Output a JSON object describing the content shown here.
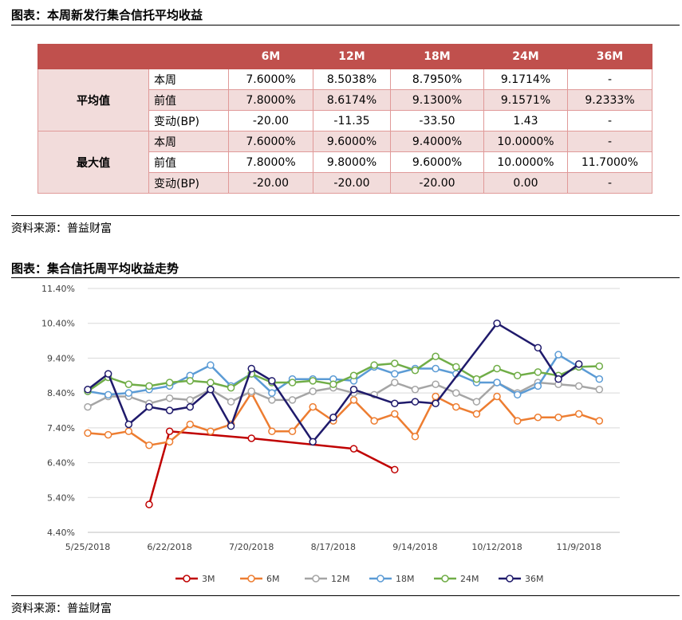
{
  "table_section": {
    "title": "图表：本周新发行集合信托平均收益",
    "source": "资料来源：普益财富",
    "headers": [
      "",
      "",
      "6M",
      "12M",
      "18M",
      "24M",
      "36M"
    ],
    "groups": [
      {
        "name": "平均值",
        "rows": [
          {
            "label": "本周",
            "values": [
              "7.6000%",
              "8.5038%",
              "8.7950%",
              "9.1714%",
              "-"
            ]
          },
          {
            "label": "前值",
            "values": [
              "7.8000%",
              "8.6174%",
              "9.1300%",
              "9.1571%",
              "9.2333%"
            ]
          },
          {
            "label": "变动(BP)",
            "values": [
              "-20.00",
              "-11.35",
              "-33.50",
              "1.43",
              "-"
            ]
          }
        ]
      },
      {
        "name": "最大值",
        "rows": [
          {
            "label": "本周",
            "values": [
              "7.6000%",
              "9.6000%",
              "9.4000%",
              "10.0000%",
              "-"
            ]
          },
          {
            "label": "前值",
            "values": [
              "7.8000%",
              "9.8000%",
              "9.6000%",
              "10.0000%",
              "11.7000%"
            ]
          },
          {
            "label": "变动(BP)",
            "values": [
              "-20.00",
              "-20.00",
              "-20.00",
              "0.00",
              "-"
            ]
          }
        ]
      }
    ]
  },
  "chart_section": {
    "title": "图表：集合信托周平均收益走势",
    "source": "资料来源：普益财富"
  },
  "chart_data": {
    "type": "line",
    "title": "",
    "xlabel": "",
    "ylabel": "",
    "x_tick_labels": [
      "5/25/2018",
      "6/22/2018",
      "7/20/2018",
      "8/17/2018",
      "9/14/2018",
      "10/12/2018",
      "11/9/2018"
    ],
    "y_tick_labels": [
      "4.40%",
      "5.40%",
      "6.40%",
      "7.40%",
      "8.40%",
      "9.40%",
      "10.40%",
      "11.40%"
    ],
    "ylim": [
      4.4,
      11.4
    ],
    "xlim": [
      "2018-05-25",
      "2018-11-23"
    ],
    "grid": "horizontal",
    "legend": "bottom",
    "series": [
      {
        "name": "3M",
        "color": "#c00000",
        "dates": [
          "2018-06-15",
          "2018-06-22",
          "2018-07-20",
          "2018-08-24",
          "2018-09-07"
        ],
        "values": [
          5.2,
          7.3,
          7.1,
          6.8,
          6.2
        ]
      },
      {
        "name": "6M",
        "color": "#ed7d31",
        "dates": [
          "2018-05-25",
          "2018-06-01",
          "2018-06-08",
          "2018-06-15",
          "2018-06-22",
          "2018-06-29",
          "2018-07-06",
          "2018-07-13",
          "2018-07-20",
          "2018-07-27",
          "2018-08-03",
          "2018-08-10",
          "2018-08-17",
          "2018-08-24",
          "2018-08-31",
          "2018-09-07",
          "2018-09-14",
          "2018-09-21",
          "2018-09-28",
          "2018-10-05",
          "2018-10-12",
          "2018-10-19",
          "2018-10-26",
          "2018-11-02",
          "2018-11-09",
          "2018-11-16"
        ],
        "values": [
          7.25,
          7.2,
          7.3,
          6.9,
          7.0,
          7.5,
          7.3,
          7.5,
          8.4,
          7.3,
          7.3,
          8.0,
          7.6,
          8.2,
          7.6,
          7.8,
          7.15,
          8.3,
          8.0,
          7.8,
          8.3,
          7.6,
          7.7,
          7.7,
          7.8,
          7.6
        ]
      },
      {
        "name": "12M",
        "color": "#a5a5a5",
        "dates": [
          "2018-05-25",
          "2018-06-01",
          "2018-06-08",
          "2018-06-15",
          "2018-06-22",
          "2018-06-29",
          "2018-07-06",
          "2018-07-13",
          "2018-07-20",
          "2018-07-27",
          "2018-08-03",
          "2018-08-10",
          "2018-08-17",
          "2018-08-24",
          "2018-08-31",
          "2018-09-07",
          "2018-09-14",
          "2018-09-21",
          "2018-09-28",
          "2018-10-05",
          "2018-10-12",
          "2018-10-19",
          "2018-10-26",
          "2018-11-02",
          "2018-11-09",
          "2018-11-16"
        ],
        "values": [
          8.0,
          8.3,
          8.3,
          8.1,
          8.25,
          8.2,
          8.5,
          8.15,
          8.45,
          8.2,
          8.2,
          8.45,
          8.55,
          8.4,
          8.35,
          8.7,
          8.5,
          8.65,
          8.4,
          8.15,
          8.7,
          8.4,
          8.7,
          8.65,
          8.6,
          8.5
        ]
      },
      {
        "name": "18M",
        "color": "#5b9bd5",
        "dates": [
          "2018-05-25",
          "2018-06-01",
          "2018-06-08",
          "2018-06-15",
          "2018-06-22",
          "2018-06-29",
          "2018-07-06",
          "2018-07-13",
          "2018-07-20",
          "2018-07-27",
          "2018-08-03",
          "2018-08-10",
          "2018-08-17",
          "2018-08-24",
          "2018-08-31",
          "2018-09-07",
          "2018-09-14",
          "2018-09-21",
          "2018-09-28",
          "2018-10-05",
          "2018-10-12",
          "2018-10-19",
          "2018-10-26",
          "2018-11-02",
          "2018-11-09",
          "2018-11-16"
        ],
        "values": [
          8.45,
          8.35,
          8.4,
          8.5,
          8.6,
          8.9,
          9.2,
          8.6,
          8.95,
          8.4,
          8.8,
          8.8,
          8.8,
          8.75,
          9.15,
          8.95,
          9.1,
          9.1,
          8.95,
          8.7,
          8.7,
          8.35,
          8.6,
          9.5,
          9.15,
          8.8
        ]
      },
      {
        "name": "24M",
        "color": "#70ad47",
        "dates": [
          "2018-05-25",
          "2018-06-01",
          "2018-06-08",
          "2018-06-15",
          "2018-06-22",
          "2018-06-29",
          "2018-07-06",
          "2018-07-13",
          "2018-07-20",
          "2018-07-27",
          "2018-08-03",
          "2018-08-10",
          "2018-08-17",
          "2018-08-24",
          "2018-08-31",
          "2018-09-07",
          "2018-09-14",
          "2018-09-21",
          "2018-09-28",
          "2018-10-05",
          "2018-10-12",
          "2018-10-19",
          "2018-10-26",
          "2018-11-02",
          "2018-11-09",
          "2018-11-16"
        ],
        "values": [
          8.45,
          8.85,
          8.65,
          8.6,
          8.7,
          8.75,
          8.7,
          8.55,
          8.95,
          8.7,
          8.7,
          8.75,
          8.65,
          8.9,
          9.2,
          9.25,
          9.05,
          9.45,
          9.15,
          8.8,
          9.1,
          8.9,
          9.0,
          8.9,
          9.15,
          9.17
        ]
      },
      {
        "name": "36M",
        "color": "#1f1a6b",
        "dates": [
          "2018-05-25",
          "2018-06-01",
          "2018-06-08",
          "2018-06-15",
          "2018-06-22",
          "2018-06-29",
          "2018-07-06",
          "2018-07-13",
          "2018-07-20",
          "2018-07-27",
          "2018-08-10",
          "2018-08-17",
          "2018-08-24",
          "2018-09-07",
          "2018-09-14",
          "2018-09-21",
          "2018-10-12",
          "2018-10-26",
          "2018-11-02",
          "2018-11-09"
        ],
        "values": [
          8.5,
          8.95,
          7.5,
          8.0,
          7.9,
          8.0,
          8.5,
          7.45,
          9.1,
          8.75,
          7.0,
          7.7,
          8.5,
          8.1,
          8.15,
          8.1,
          10.4,
          9.7,
          8.8,
          9.23
        ]
      }
    ]
  }
}
